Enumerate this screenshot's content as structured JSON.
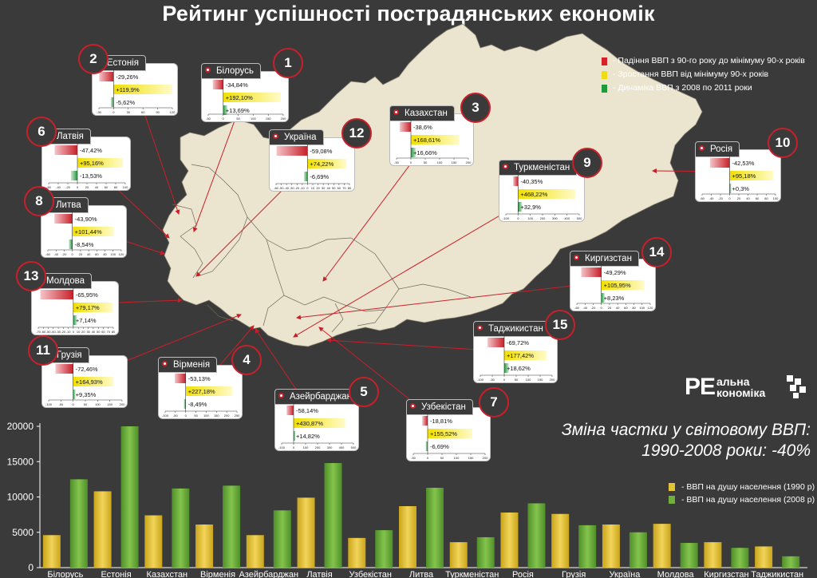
{
  "title": "Рейтинг успішності пострадянських економік",
  "legend_items": [
    {
      "label": "- Падіння ВВП з 90-го року до мінімуму 90-х років",
      "color": "#d8202a"
    },
    {
      "label": "- Зростання ВВП від мінімуму 90-х років",
      "color": "#f0dc14"
    },
    {
      "label": "- Динаміка ВВП з 2008 по 2011 роки",
      "color": "#1f9a3a"
    }
  ],
  "summary": {
    "line1": "Зміна частки у світовому ВВП:",
    "line2": "1990-2008 роки: -40%"
  },
  "logo": {
    "big": "РЕ",
    "line1": "альна",
    "line2": "кономіка"
  },
  "bar_legend": [
    {
      "label": "- ВВП на душу населення (1990 р)",
      "color": "#e3c234"
    },
    {
      "label": "- ВВП на душу населення (2008 р)",
      "color": "#6fb03c"
    }
  ],
  "cards": [
    {
      "rank": "1",
      "name": "Білорусь",
      "values": [
        -34.84,
        192.1,
        13.69
      ],
      "labels": [
        "-34,84%",
        "+192,10%",
        "+13,69%"
      ],
      "ticks": [
        "-50",
        "0",
        "50",
        "100",
        "150",
        "200"
      ]
    },
    {
      "rank": "2",
      "name": "Естонія",
      "values": [
        -29.26,
        119.9,
        -5.62
      ],
      "labels": [
        "-29,26%",
        "+119,9%",
        "-5,62%"
      ],
      "ticks": [
        "-30",
        "0",
        "30",
        "60",
        "90",
        "120"
      ]
    },
    {
      "rank": "3",
      "name": "Казахстан",
      "values": [
        -38.6,
        168.61,
        16.66
      ],
      "labels": [
        "-38,6%",
        "+168,61%",
        "+16,66%"
      ],
      "ticks": [
        "-50",
        "0",
        "50",
        "100",
        "150",
        "200"
      ]
    },
    {
      "rank": "4",
      "name": "Вірменія",
      "values": [
        -53.13,
        227.18,
        -8.49
      ],
      "labels": [
        "-53,13%",
        "+227,18%",
        "-8,49%"
      ],
      "ticks": [
        "-100",
        "-50",
        "0",
        "50",
        "100",
        "150",
        "200",
        "250"
      ]
    },
    {
      "rank": "5",
      "name": "Азейрбарджан",
      "values": [
        -58.14,
        430.87,
        14.82
      ],
      "labels": [
        "-58,14%",
        "+430,87%",
        "+14,82%"
      ],
      "ticks": [
        "-100",
        "0",
        "100",
        "200",
        "300",
        "400",
        "500"
      ]
    },
    {
      "rank": "6",
      "name": "Латвія",
      "values": [
        -47.42,
        95.16,
        -13.53
      ],
      "labels": [
        "-47,42%",
        "+95,16%",
        "-13,53%"
      ],
      "ticks": [
        "-60",
        "-40",
        "-20",
        "0",
        "20",
        "40",
        "60",
        "80",
        "100"
      ]
    },
    {
      "rank": "7",
      "name": "Узбекістан",
      "values": [
        -18.81,
        155.52,
        -6.69
      ],
      "labels": [
        "-18,81%",
        "+155,52%",
        "-6,69%"
      ],
      "ticks": [
        "-50",
        "0",
        "50",
        "100",
        "150",
        "200"
      ]
    },
    {
      "rank": "8",
      "name": "Литва",
      "values": [
        -43.9,
        101.44,
        -8.54
      ],
      "labels": [
        "-43,90%",
        "+101,44%",
        "-8,54%"
      ],
      "ticks": [
        "-60",
        "-40",
        "-20",
        "0",
        "20",
        "40",
        "60",
        "80",
        "100",
        "120"
      ]
    },
    {
      "rank": "9",
      "name": "Туркменістан",
      "values": [
        -40.35,
        468.22,
        32.9
      ],
      "labels": [
        "-40,35%",
        "+468,22%",
        "+32,9%"
      ],
      "ticks": [
        "-100",
        "0",
        "100",
        "200",
        "300",
        "400",
        "500"
      ]
    },
    {
      "rank": "10",
      "name": "Росія",
      "values": [
        -42.53,
        95.18,
        0.3
      ],
      "labels": [
        "-42,53%",
        "+95,18%",
        "+0,3%"
      ],
      "ticks": [
        "-60",
        "-40",
        "-20",
        "0",
        "20",
        "40",
        "60",
        "80",
        "100"
      ]
    },
    {
      "rank": "11",
      "name": "Грузія",
      "values": [
        -72.46,
        164.93,
        9.35
      ],
      "labels": [
        "-72,46%",
        "+164,93%",
        "+9,35%"
      ],
      "ticks": [
        "-100",
        "-50",
        "0",
        "50",
        "100",
        "150",
        "200"
      ]
    },
    {
      "rank": "12",
      "name": "Україна",
      "values": [
        -59.08,
        74.22,
        -6.69
      ],
      "labels": [
        "-59,08%",
        "+74,22%",
        "-6,69%"
      ],
      "ticks": [
        "-60",
        "-50",
        "-40",
        "-30",
        "-20",
        "-10",
        "0",
        "10",
        "20",
        "30",
        "40",
        "50",
        "60",
        "70",
        "80"
      ]
    },
    {
      "rank": "13",
      "name": "Молдова",
      "values": [
        -65.95,
        79.17,
        7.14
      ],
      "labels": [
        "-65,95%",
        "+79,17%",
        "+7,14%"
      ],
      "ticks": [
        "-70",
        "-60",
        "-50",
        "-40",
        "-30",
        "-20",
        "-10",
        "0",
        "10",
        "20",
        "30",
        "40",
        "50",
        "60",
        "70",
        "80"
      ]
    },
    {
      "rank": "14",
      "name": "Киргизстан",
      "values": [
        -49.29,
        105.95,
        8.23
      ],
      "labels": [
        "-49,29%",
        "+105,95%",
        "+8,23%"
      ],
      "ticks": [
        "-60",
        "-40",
        "-20",
        "0",
        "20",
        "40",
        "60",
        "80",
        "100",
        "120"
      ]
    },
    {
      "rank": "15",
      "name": "Таджикистан",
      "values": [
        -69.72,
        177.42,
        18.62
      ],
      "labels": [
        "-69,72%",
        "+177,42%",
        "+18,62%"
      ],
      "ticks": [
        "-100",
        "-50",
        "0",
        "50",
        "100",
        "150",
        "200"
      ]
    }
  ],
  "chart_data": {
    "type": "bar",
    "title": "",
    "xlabel": "",
    "ylabel": "",
    "ylim": [
      0,
      20000
    ],
    "yticks": [
      "0",
      "5000",
      "10000",
      "15000",
      "20000"
    ],
    "categories": [
      "Білорусь",
      "Естонія",
      "Казахстан",
      "Вірменія",
      "Азейрбарджан",
      "Латвія",
      "Узбекістан",
      "Литва",
      "Туркменістан",
      "Росія",
      "Грузія",
      "Україна",
      "Молдова",
      "Киргизстан",
      "Таджикистан"
    ],
    "series": [
      {
        "name": "- ВВП на душу населення (1990 р)",
        "values": [
          4600,
          10800,
          7400,
          6100,
          4600,
          9900,
          4200,
          8700,
          3600,
          7800,
          7600,
          6100,
          6200,
          3600,
          3000
        ]
      },
      {
        "name": "- ВВП на душу населення (2008 р)",
        "values": [
          12500,
          20000,
          11200,
          11600,
          8100,
          14800,
          5300,
          11300,
          4300,
          9100,
          6000,
          5000,
          3500,
          2800,
          1600
        ]
      }
    ],
    "grid": false,
    "legend": "right"
  }
}
